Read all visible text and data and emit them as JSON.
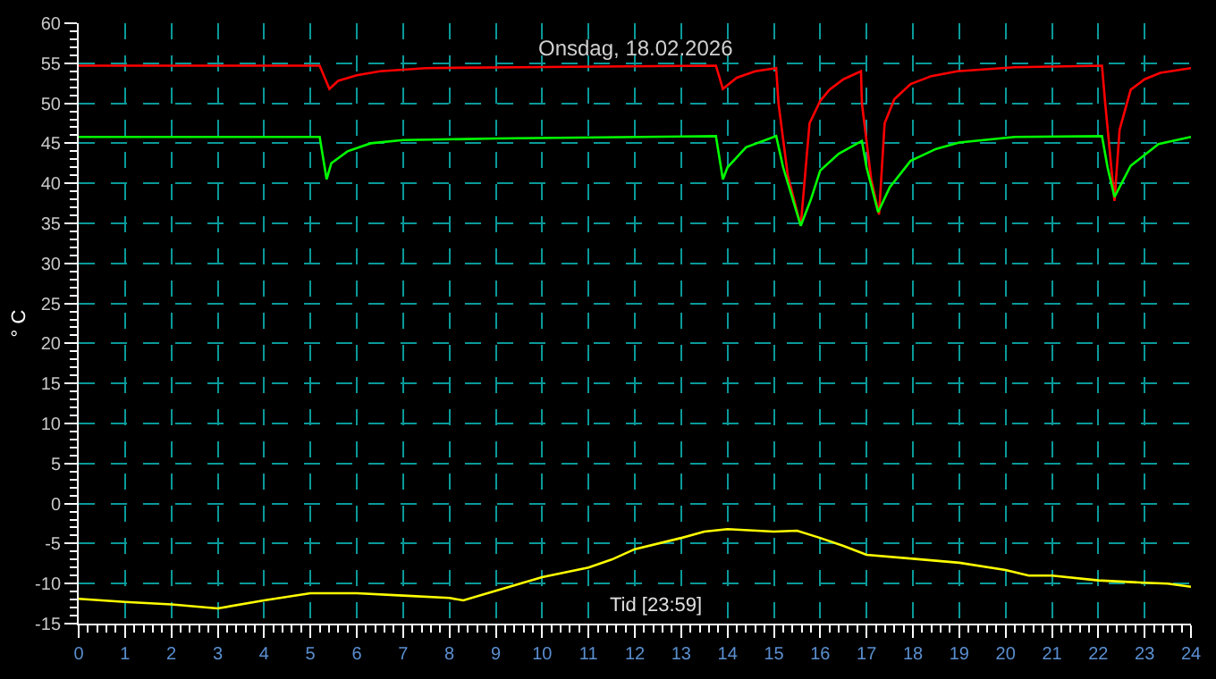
{
  "chart_data": {
    "type": "line",
    "title": "Onsdag, 18.02.2026",
    "xlabel": "Tid [23:59]",
    "ylabel": "° C",
    "xlim": [
      0,
      24
    ],
    "xticks": [
      0,
      1,
      2,
      3,
      4,
      5,
      6,
      7,
      8,
      9,
      10,
      11,
      12,
      13,
      14,
      15,
      16,
      17,
      18,
      19,
      20,
      21,
      22,
      23,
      24
    ],
    "ylim": [
      -15,
      60
    ],
    "yticks": [
      -15,
      -10,
      -5,
      0,
      5,
      10,
      15,
      20,
      25,
      30,
      35,
      40,
      45,
      50,
      55,
      60
    ],
    "grid": true,
    "line_style": "solid",
    "marker": "none",
    "series": [
      {
        "color": "#ff0000",
        "x": [
          0,
          5.2,
          5.41,
          5.6,
          6.0,
          6.5,
          7.5,
          9.5,
          13.75,
          13.9,
          14.2,
          14.6,
          15.05,
          15.1,
          15.3,
          15.58,
          15.77,
          16.0,
          16.2,
          16.5,
          16.88,
          16.9,
          17.1,
          17.27,
          17.39,
          17.6,
          17.95,
          18.4,
          18.96,
          20.2,
          22.08,
          22.15,
          22.35,
          22.46,
          22.7,
          23.0,
          23.34,
          24
        ],
        "values": [
          54.7,
          54.7,
          51.8,
          52.8,
          53.5,
          54.0,
          54.4,
          54.5,
          54.7,
          51.8,
          53.2,
          54.0,
          54.4,
          50.0,
          41.0,
          34.7,
          47.5,
          50.3,
          51.7,
          53.0,
          54.0,
          50.0,
          40.5,
          36.1,
          47.5,
          50.5,
          52.4,
          53.4,
          54.0,
          54.5,
          54.7,
          50.0,
          37.8,
          46.7,
          51.7,
          53.0,
          53.8,
          54.4
        ]
      },
      {
        "color": "#00ff00",
        "x": [
          0,
          5.2,
          5.35,
          5.45,
          5.8,
          6.3,
          7.0,
          9.0,
          13.75,
          13.9,
          14.0,
          14.4,
          15.05,
          15.2,
          15.58,
          15.8,
          16.0,
          16.4,
          16.9,
          17.0,
          17.25,
          17.5,
          17.95,
          18.5,
          19.0,
          20.2,
          22.08,
          22.2,
          22.35,
          22.7,
          23.3,
          24
        ],
        "values": [
          45.8,
          45.8,
          40.5,
          42.5,
          44.0,
          45.0,
          45.4,
          45.6,
          45.9,
          40.5,
          42.0,
          44.5,
          45.9,
          42.0,
          34.7,
          38.0,
          41.6,
          43.7,
          45.3,
          42.0,
          36.4,
          39.5,
          42.8,
          44.3,
          45.1,
          45.8,
          45.9,
          42.0,
          38.3,
          42.2,
          44.9,
          45.8
        ]
      },
      {
        "color": "#ffff00",
        "x": [
          0,
          1,
          2,
          3,
          4,
          5,
          6,
          7,
          8,
          8.3,
          9,
          10,
          11,
          11.5,
          12,
          13,
          13.5,
          14,
          15,
          15.5,
          16,
          16.5,
          17,
          18,
          19,
          20,
          20.5,
          21,
          22,
          23,
          23.5,
          24
        ],
        "values": [
          -11.9,
          -12.3,
          -12.6,
          -13.1,
          -12.1,
          -11.2,
          -11.2,
          -11.5,
          -11.8,
          -12.1,
          -10.9,
          -9.2,
          -8.0,
          -7.0,
          -5.7,
          -4.3,
          -3.5,
          -3.2,
          -3.5,
          -3.4,
          -4.3,
          -5.3,
          -6.4,
          -6.9,
          -7.4,
          -8.3,
          -9.0,
          -9.0,
          -9.6,
          -9.9,
          -10.0,
          -10.4
        ]
      }
    ]
  }
}
